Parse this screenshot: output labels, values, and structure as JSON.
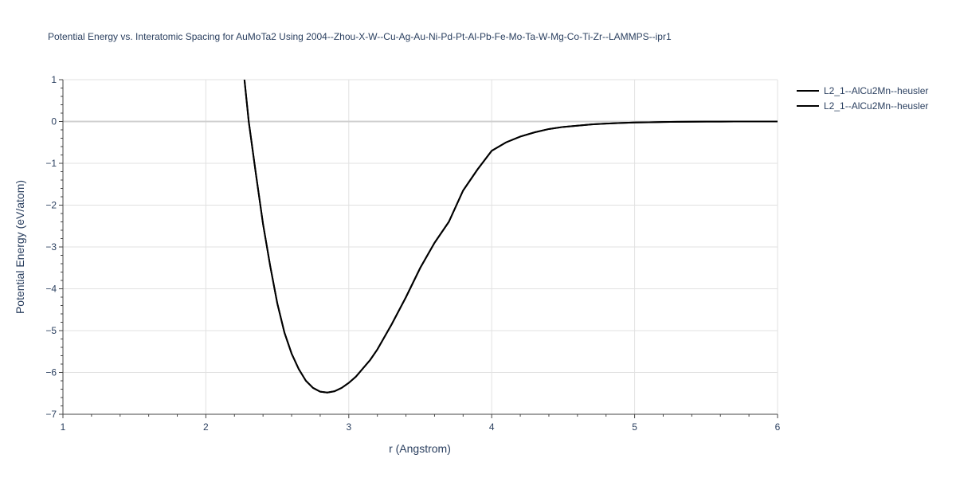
{
  "chart_data": {
    "type": "line",
    "title": "Potential Energy vs. Interatomic Spacing for AuMoTa2 Using 2004--Zhou-X-W--Cu-Ag-Au-Ni-Pd-Pt-Al-Pb-Fe-Mo-Ta-W-Mg-Co-Ti-Zr--LAMMPS--ipr1",
    "xlabel": "r (Angstrom)",
    "ylabel": "Potential Energy (eV/atom)",
    "xlim": [
      1,
      6
    ],
    "ylim": [
      -7,
      1
    ],
    "x_ticks": [
      1,
      2,
      3,
      4,
      5,
      6
    ],
    "y_ticks": [
      1,
      0,
      -1,
      -2,
      -3,
      -4,
      -5,
      -6,
      -7
    ],
    "x_tick_labels": [
      "1",
      "2",
      "3",
      "4",
      "5",
      "6"
    ],
    "y_tick_labels": [
      "1",
      "0",
      "−1",
      "−2",
      "−3",
      "−4",
      "−5",
      "−6",
      "−7"
    ],
    "grid": true,
    "legend_position": "top-right",
    "series": [
      {
        "name": "L2_1--AlCu2Mn--heusler",
        "color": "#000000",
        "x": [
          2.27,
          2.3,
          2.35,
          2.4,
          2.45,
          2.5,
          2.55,
          2.6,
          2.65,
          2.7,
          2.75,
          2.8,
          2.85,
          2.9,
          2.95,
          3.0,
          3.05,
          3.1,
          3.15,
          3.2,
          3.3,
          3.4,
          3.5,
          3.6,
          3.7,
          3.8,
          3.9,
          4.0,
          4.1,
          4.2,
          4.3,
          4.4,
          4.5,
          4.6,
          4.7,
          4.8,
          4.9,
          5.0,
          5.1,
          5.2,
          5.3,
          5.4,
          5.5,
          5.6,
          5.7,
          5.8,
          5.9,
          6.0
        ],
        "y": [
          1.0,
          0.0,
          -1.25,
          -2.45,
          -3.45,
          -4.35,
          -5.05,
          -5.55,
          -5.92,
          -6.2,
          -6.37,
          -6.46,
          -6.48,
          -6.45,
          -6.37,
          -6.25,
          -6.1,
          -5.9,
          -5.7,
          -5.45,
          -4.85,
          -4.2,
          -3.5,
          -2.9,
          -2.4,
          -1.65,
          -1.15,
          -0.7,
          -0.5,
          -0.36,
          -0.26,
          -0.18,
          -0.13,
          -0.1,
          -0.07,
          -0.05,
          -0.035,
          -0.025,
          -0.018,
          -0.012,
          -0.008,
          -0.005,
          -0.003,
          -0.002,
          -0.001,
          -0.001,
          0.0,
          0.0
        ]
      },
      {
        "name": "L2_1--AlCu2Mn--heusler",
        "color": "#000000",
        "x": [
          2.27,
          2.3,
          2.35,
          2.4,
          2.45,
          2.5,
          2.55,
          2.6,
          2.65,
          2.7,
          2.75,
          2.8,
          2.85,
          2.9,
          2.95,
          3.0,
          3.05,
          3.1,
          3.15,
          3.2,
          3.3,
          3.4,
          3.5,
          3.6,
          3.7,
          3.8,
          3.9,
          4.0,
          4.1,
          4.2,
          4.3,
          4.4,
          4.5,
          4.6,
          4.7,
          4.8,
          4.9,
          5.0,
          5.1,
          5.2,
          5.3,
          5.4,
          5.5,
          5.6,
          5.7,
          5.8,
          5.9,
          6.0
        ],
        "y": [
          1.0,
          0.0,
          -1.25,
          -2.45,
          -3.45,
          -4.35,
          -5.05,
          -5.55,
          -5.92,
          -6.2,
          -6.37,
          -6.46,
          -6.48,
          -6.45,
          -6.37,
          -6.25,
          -6.1,
          -5.9,
          -5.7,
          -5.45,
          -4.85,
          -4.2,
          -3.5,
          -2.9,
          -2.4,
          -1.65,
          -1.15,
          -0.7,
          -0.5,
          -0.36,
          -0.26,
          -0.18,
          -0.13,
          -0.1,
          -0.07,
          -0.05,
          -0.035,
          -0.025,
          -0.018,
          -0.012,
          -0.008,
          -0.005,
          -0.003,
          -0.002,
          -0.001,
          -0.001,
          0.0,
          0.0
        ]
      }
    ]
  }
}
